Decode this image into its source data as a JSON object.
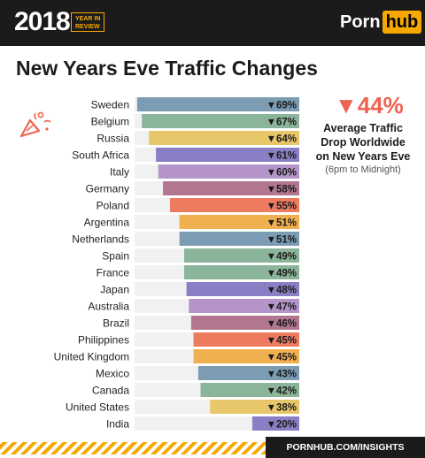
{
  "header": {
    "year": "2018",
    "year_badge_line1": "YEAR IN",
    "year_badge_line2": "REVIEW",
    "brand_part1": "Porn",
    "brand_part2": "hub"
  },
  "title": "New Years Eve Traffic Changes",
  "stat": {
    "value": "▼44%",
    "line1": "Average Traffic",
    "line2": "Drop Worldwide",
    "line3": "on New Years Eve",
    "note": "(6pm to Midnight)"
  },
  "footer": {
    "text": "PORNHUB.COM/INSIGHTS"
  },
  "colors": {
    "accent_red": "#ef6351",
    "brand_orange": "#f7a800",
    "track": "#f1f1f1"
  },
  "chart_data": {
    "type": "bar",
    "orientation": "horizontal",
    "direction": "decrease",
    "unit": "%",
    "xlim": [
      0,
      100
    ],
    "categories": [
      "Sweden",
      "Belgium",
      "Russia",
      "South Africa",
      "Italy",
      "Germany",
      "Poland",
      "Argentina",
      "Netherlands",
      "Spain",
      "France",
      "Japan",
      "Australia",
      "Brazil",
      "Philippines",
      "United Kingdom",
      "Mexico",
      "Canada",
      "United States",
      "India"
    ],
    "values": [
      69,
      67,
      64,
      61,
      60,
      58,
      55,
      51,
      51,
      49,
      49,
      48,
      47,
      46,
      45,
      45,
      43,
      42,
      38,
      20
    ],
    "labels": [
      "▼69%",
      "▼67%",
      "▼64%",
      "▼61%",
      "▼60%",
      "▼58%",
      "▼55%",
      "▼51%",
      "▼51%",
      "▼49%",
      "▼49%",
      "▼48%",
      "▼47%",
      "▼46%",
      "▼45%",
      "▼45%",
      "▼43%",
      "▼42%",
      "▼38%",
      "▼20%"
    ],
    "bar_colors": [
      "#7c9cb3",
      "#8bb59a",
      "#e8c76a",
      "#8a7fc4",
      "#b595c9",
      "#b2768f",
      "#ec7b60",
      "#f0b04f",
      "#7c9cb3",
      "#8bb59a",
      "#8bb59a",
      "#8a7fc4",
      "#b595c9",
      "#b2768f",
      "#ec7b60",
      "#f0b04f",
      "#7c9cb3",
      "#8bb59a",
      "#e8c76a",
      "#8a7fc4"
    ]
  }
}
